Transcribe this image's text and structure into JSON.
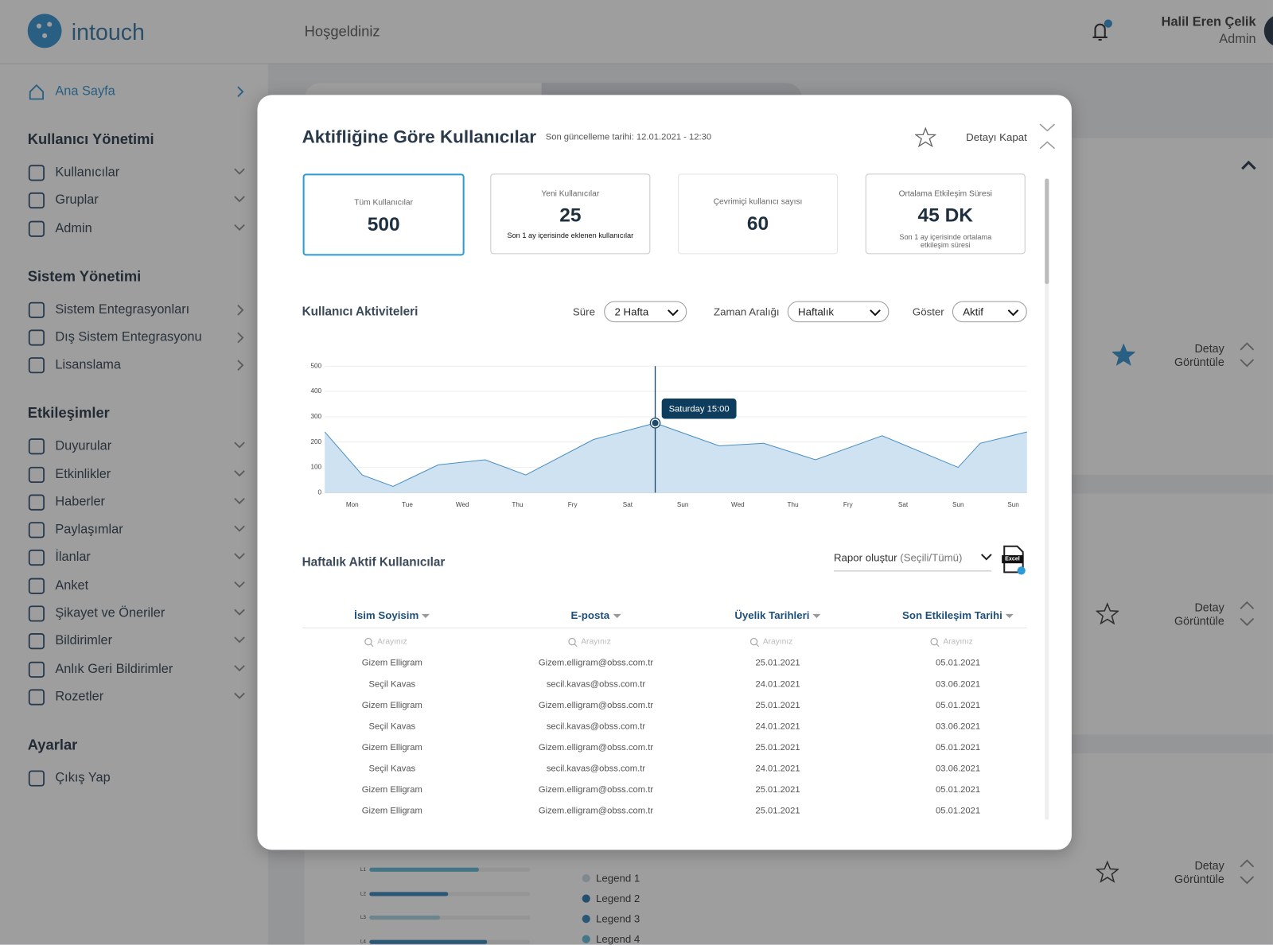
{
  "header": {
    "logo": "intouch",
    "welcome": "Hoşgeldiniz",
    "user_name": "Halil Eren Çelik",
    "user_role": "Admin"
  },
  "sidebar": {
    "home": "Ana Sayfa",
    "sections": [
      {
        "title": "Kullanıcı Yönetimi",
        "items": [
          "Kullanıcılar",
          "Gruplar",
          "Admin"
        ]
      },
      {
        "title": "Sistem Yönetimi",
        "items": [
          "Sistem Entegrasyonları",
          "Dış Sistem Entegrasyonu",
          "Lisanslama"
        ]
      },
      {
        "title": "Etkileşimler",
        "items": [
          "Duyurular",
          "Etkinlikler",
          "Haberler",
          "Paylaşımlar",
          "İlanlar",
          "Anket",
          "Şikayet ve Öneriler",
          "Bildirimler",
          "Anlık Geri Bildirimler",
          "Rozetler"
        ]
      },
      {
        "title": "Ayarlar",
        "items": [
          "Çıkış Yap"
        ]
      }
    ]
  },
  "background": {
    "detail_buttons": [
      "Detay Görüntüle",
      "Detay Görüntüle",
      "Detay Görüntüle"
    ],
    "bar_labels": [
      "L1",
      "L2",
      "L3",
      "L4"
    ],
    "bar_values": [
      68,
      49,
      44,
      73
    ],
    "bar_colors": [
      "#5bb6d6",
      "#2e7fb8",
      "#a5cfe0",
      "#2e7fb8"
    ],
    "legend": [
      "Legend 1",
      "Legend 2",
      "Legend 3",
      "Legend 4"
    ],
    "legend_colors": [
      "#c5dbe6",
      "#1f6ea8",
      "#2e7fb8",
      "#5bb6d6"
    ]
  },
  "modal": {
    "title": "Aktifliğine Göre Kullanıcılar",
    "updated": "Son güncelleme tarihi: 12.01.2021 - 12:30",
    "close": "Detayı Kapat",
    "cards": [
      {
        "label": "Tüm Kullanıcılar",
        "value": 500
      },
      {
        "label": "Yeni Kullanıcılar",
        "value": 25,
        "note": "Son 1 ay içerisinde eklenen kullanıcılar"
      },
      {
        "label": "Çevrimiçi kullanıcı sayısı",
        "value": 60
      },
      {
        "label": "Ortalama Etkileşim Süresi",
        "value": "45 DK",
        "note": "Son 1 ay içerisinde ortalama etkileşim süresi"
      }
    ],
    "chart_title": "Kullanıcı Aktiviteleri",
    "filters": [
      {
        "label": "Süre",
        "value": "2 Hafta"
      },
      {
        "label": "Zaman Aralığı",
        "value": "Haftalık"
      },
      {
        "label": "Göster",
        "value": "Aktif"
      }
    ],
    "table_title": "Haftalık Aktif Kullanıcılar",
    "report": "Rapor oluştur",
    "report_scope": "(Seçili/Tümü)",
    "excel": "Excel",
    "table": {
      "columns": [
        "İsim Soyisim",
        "E-posta",
        "Üyelik Tarihleri",
        "Son Etkileşim Tarihi"
      ],
      "search_placeholder": "Arayınız",
      "rows": [
        [
          "Gizem Elligram",
          "Gizem.elligram@obss.com.tr",
          "25.01.2021",
          "05.01.2021"
        ],
        [
          "Seçil Kavas",
          "secil.kavas@obss.com.tr",
          "24.01.2021",
          "03.06.2021"
        ],
        [
          "Gizem Elligram",
          "Gizem.elligram@obss.com.tr",
          "25.01.2021",
          "05.01.2021"
        ],
        [
          "Seçil Kavas",
          "secil.kavas@obss.com.tr",
          "24.01.2021",
          "03.06.2021"
        ],
        [
          "Gizem Elligram",
          "Gizem.elligram@obss.com.tr",
          "25.01.2021",
          "05.01.2021"
        ],
        [
          "Seçil Kavas",
          "secil.kavas@obss.com.tr",
          "24.01.2021",
          "03.06.2021"
        ],
        [
          "Gizem Elligram",
          "Gizem.elligram@obss.com.tr",
          "25.01.2021",
          "05.01.2021"
        ],
        [
          "Gizem Elligram",
          "Gizem.elligram@obss.com.tr",
          "25.01.2021",
          "05.01.2021"
        ]
      ]
    }
  },
  "chart_data": {
    "type": "area",
    "color": "#cfe2f1",
    "line_color": "#4a90c2",
    "grid": true,
    "x": [
      -0.5,
      0.18,
      0.74,
      1.56,
      2.41,
      3.15,
      4.38,
      5.5,
      6.66,
      7.47,
      8.41,
      9.62,
      11.0,
      11.4,
      12.25
    ],
    "values": [
      240,
      70,
      25,
      110,
      130,
      70,
      210,
      275,
      185,
      195,
      130,
      225,
      100,
      195,
      240
    ],
    "xlim": [
      -0.5,
      12.25
    ],
    "xticks": [
      {
        "value": 0,
        "label": "Mon"
      },
      {
        "value": 1,
        "label": "Tue"
      },
      {
        "value": 2,
        "label": "Wed"
      },
      {
        "value": 3,
        "label": "Thu"
      },
      {
        "value": 4,
        "label": "Fry"
      },
      {
        "value": 5,
        "label": "Sat"
      },
      {
        "value": 6,
        "label": "Sun"
      },
      {
        "value": 7,
        "label": "Wed"
      },
      {
        "value": 8,
        "label": "Thu"
      },
      {
        "value": 9,
        "label": "Fry"
      },
      {
        "value": 10,
        "label": "Sat"
      },
      {
        "value": 11,
        "label": "Sun"
      },
      {
        "value": 12,
        "label": "Sun"
      }
    ],
    "ylim": [
      0,
      500
    ],
    "yticks": [
      0,
      100,
      200,
      300,
      400,
      500
    ],
    "tooltip": {
      "label": "Saturday 15:00",
      "x": 5.5
    }
  }
}
